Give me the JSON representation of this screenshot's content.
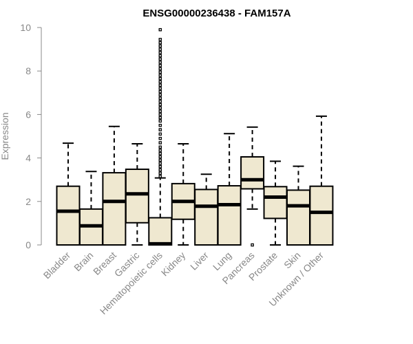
{
  "chart_data": {
    "type": "boxplot",
    "title": "ENSG00000236438 - FAM157A",
    "xlabel": "",
    "ylabel": "Expression",
    "ylim": [
      0,
      10
    ],
    "yticks": [
      0,
      2,
      4,
      6,
      8,
      10
    ],
    "box_fill": "#efe8d0",
    "categories": [
      "Bladder",
      "Brain",
      "Breast",
      "Gastric",
      "Hematopoietic cells",
      "Kidney",
      "Liver",
      "Lung",
      "Pancreas",
      "Prostate",
      "Skin",
      "Unknown / Other"
    ],
    "boxes": [
      {
        "category": "Bladder",
        "min": 0,
        "q1": 0,
        "median": 1.55,
        "q3": 2.7,
        "max": 4.68,
        "outliers": []
      },
      {
        "category": "Brain",
        "min": 0,
        "q1": 0,
        "median": 0.88,
        "q3": 1.65,
        "max": 3.38,
        "outliers": []
      },
      {
        "category": "Breast",
        "min": 0,
        "q1": 0,
        "median": 2.0,
        "q3": 3.32,
        "max": 5.45,
        "outliers": []
      },
      {
        "category": "Gastric",
        "min": 0,
        "q1": 1.02,
        "median": 2.35,
        "q3": 3.48,
        "max": 4.65,
        "outliers": []
      },
      {
        "category": "Hematopoietic cells",
        "min": 0,
        "q1": 0,
        "median": 0.05,
        "q3": 1.25,
        "max": 3.08,
        "outliers": [
          3.15,
          3.3,
          3.45,
          3.6,
          3.75,
          3.9,
          4.05,
          4.2,
          4.35,
          4.5,
          4.7,
          4.9,
          5.1,
          5.3,
          5.5,
          5.7,
          5.85,
          6.0,
          6.15,
          6.3,
          6.45,
          6.6,
          6.75,
          6.9,
          7.05,
          7.2,
          7.35,
          7.5,
          7.65,
          7.8,
          7.95,
          8.1,
          8.25,
          8.4,
          8.55,
          8.7,
          8.85,
          9.0,
          9.15,
          9.3,
          9.45,
          9.9
        ]
      },
      {
        "category": "Kidney",
        "min": 0,
        "q1": 1.18,
        "median": 2.0,
        "q3": 2.82,
        "max": 4.65,
        "outliers": []
      },
      {
        "category": "Liver",
        "min": 0,
        "q1": 0,
        "median": 1.78,
        "q3": 2.55,
        "max": 3.25,
        "outliers": []
      },
      {
        "category": "Lung",
        "min": 0,
        "q1": 0,
        "median": 1.85,
        "q3": 2.72,
        "max": 5.12,
        "outliers": []
      },
      {
        "category": "Pancreas",
        "min": 1.65,
        "q1": 2.58,
        "median": 3.0,
        "q3": 4.05,
        "max": 5.42,
        "outliers": [
          0
        ]
      },
      {
        "category": "Prostate",
        "min": 0,
        "q1": 1.22,
        "median": 2.2,
        "q3": 2.68,
        "max": 3.85,
        "outliers": []
      },
      {
        "category": "Skin",
        "min": 0,
        "q1": 0,
        "median": 1.8,
        "q3": 2.52,
        "max": 3.62,
        "outliers": []
      },
      {
        "category": "Unknown / Other",
        "min": 0,
        "q1": 0,
        "median": 1.5,
        "q3": 2.7,
        "max": 5.92,
        "outliers": []
      }
    ]
  }
}
